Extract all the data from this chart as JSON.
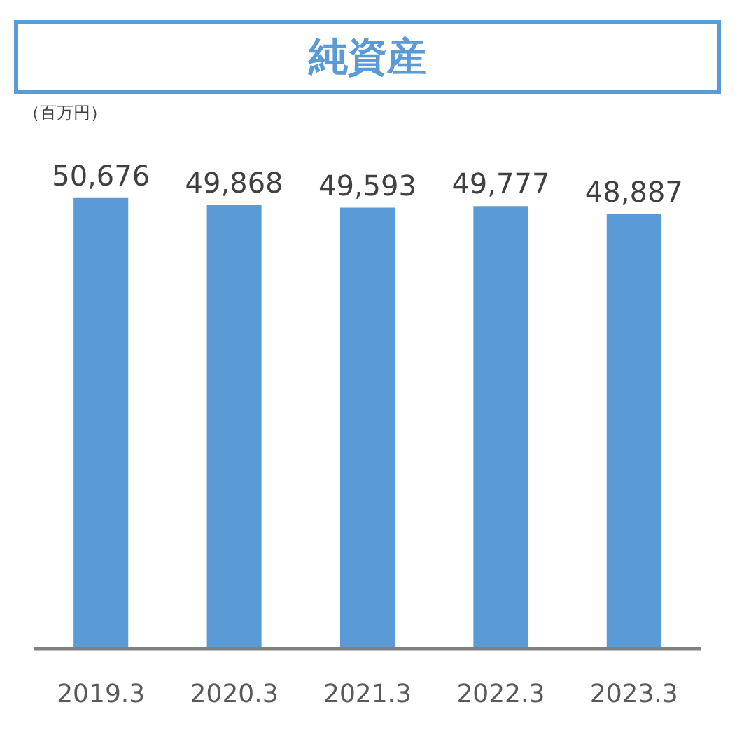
{
  "chart_data": {
    "type": "bar",
    "title": "純資産",
    "ylabel": "（百万円）",
    "categories": [
      "2019.3",
      "2020.3",
      "2021.3",
      "2022.3",
      "2023.3"
    ],
    "values": [
      50676,
      49868,
      49593,
      49777,
      48887
    ],
    "color": "#5b9bd5",
    "value_labels": [
      "50,676",
      "49,868",
      "49,593",
      "49,777",
      "48,887"
    ],
    "tick_labels": "x",
    "grid": false
  }
}
